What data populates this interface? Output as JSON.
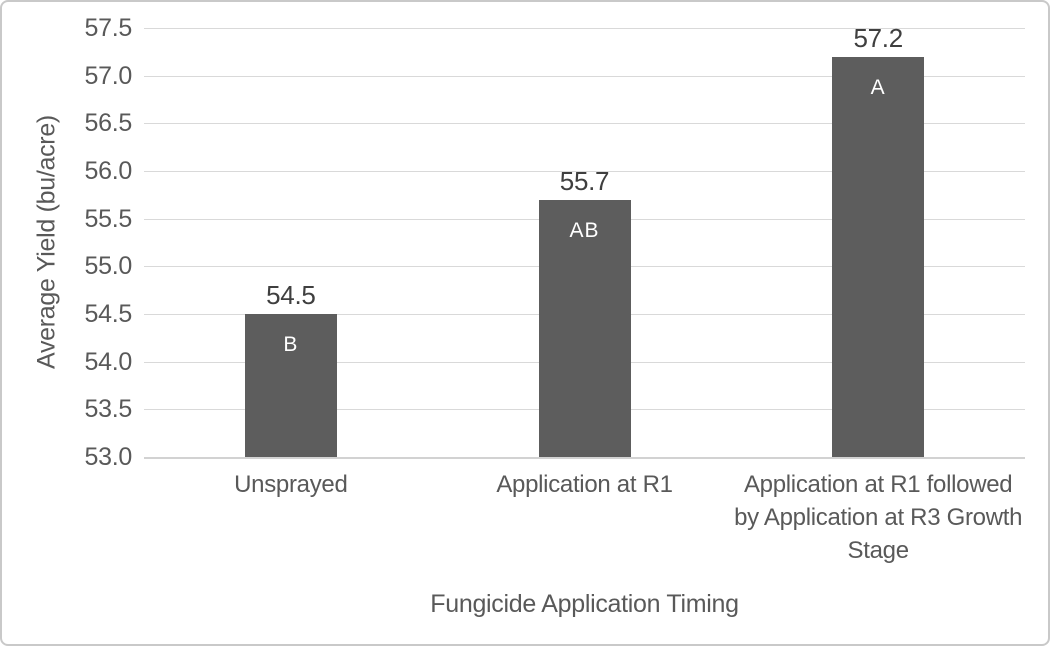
{
  "chart_data": {
    "type": "bar",
    "title": "",
    "xlabel": "Fungicide Application Timing",
    "ylabel": "Average Yield (bu/acre)",
    "categories": [
      "Unsprayed",
      "Application at R1",
      "Application at R1 followed\nby Application at R3 Growth\nStage"
    ],
    "values": [
      54.5,
      55.7,
      57.2
    ],
    "data_labels": [
      "54.5",
      "55.7",
      "57.2"
    ],
    "bar_letters": [
      "B",
      "AB",
      "A"
    ],
    "ylim": [
      53.0,
      57.5
    ],
    "ytick_step": 0.5,
    "ytick_labels": [
      "53.0",
      "53.5",
      "54.0",
      "54.5",
      "55.0",
      "55.5",
      "56.0",
      "56.5",
      "57.0",
      "57.5"
    ],
    "grid": true,
    "legend": false,
    "colors": {
      "bar": "#5d5d5d",
      "bar_letter_text": "#ffffff",
      "gridline": "#d9d9d9",
      "axis_line": "#d2d2d2",
      "tick_text": "#595959",
      "data_label_text": "#3f3f3f",
      "border": "#c9c9c9",
      "background": "#ffffff"
    }
  }
}
